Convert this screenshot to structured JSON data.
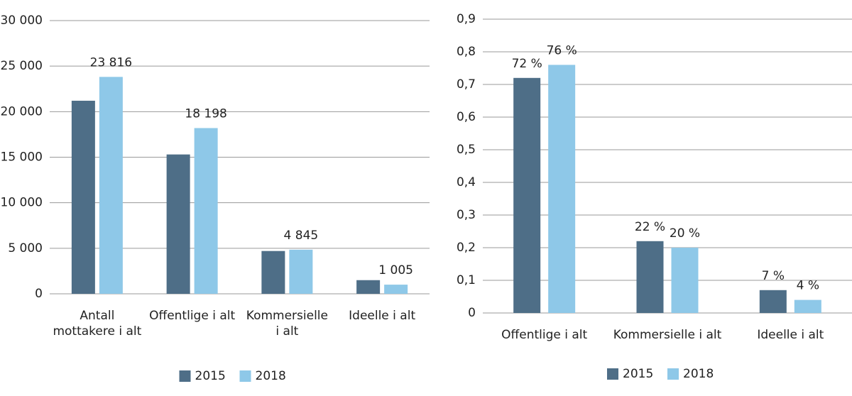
{
  "chart_data": [
    {
      "type": "bar",
      "categories": [
        "Antall mottakere i alt",
        "Offentlige i alt",
        "Kommersielle i alt",
        "Ideelle i alt"
      ],
      "series": [
        {
          "name": "2015",
          "color": "#4e6e87",
          "values": [
            21200,
            15300,
            4700,
            1500
          ]
        },
        {
          "name": "2018",
          "color": "#8ec8e8",
          "values": [
            23816,
            18198,
            4845,
            1005
          ],
          "value_labels": [
            "23 816",
            "18 198",
            "4 845",
            "1 005"
          ]
        }
      ],
      "ylim": [
        0,
        30000
      ],
      "yticks": [
        0,
        {
          "value": 5000,
          "label": "5 000"
        },
        {
          "value": 10000,
          "label": "10 000"
        },
        {
          "value": 15000,
          "label": "15 000"
        },
        {
          "value": 20000,
          "label": "20 000"
        },
        {
          "value": 25000,
          "label": "25 000"
        },
        {
          "value": 30000,
          "label": "30 000"
        }
      ],
      "grid": true,
      "legend": "bottom"
    },
    {
      "type": "bar",
      "categories": [
        "Offentlige i alt",
        "Kommersielle i alt",
        "Ideelle i alt"
      ],
      "series": [
        {
          "name": "2015",
          "color": "#4e6e87",
          "values": [
            0.72,
            0.22,
            0.07
          ],
          "value_labels": [
            "72 %",
            "22 %",
            "7 %"
          ]
        },
        {
          "name": "2018",
          "color": "#8ec8e8",
          "values": [
            0.76,
            0.2,
            0.04
          ],
          "value_labels": [
            "76 %",
            "20 %",
            "4 %"
          ]
        }
      ],
      "ylim": [
        0,
        0.9
      ],
      "yticks": [
        0,
        {
          "value": 0.1,
          "label": "0,1"
        },
        {
          "value": 0.2,
          "label": "0,2"
        },
        {
          "value": 0.3,
          "label": "0,3"
        },
        {
          "value": 0.4,
          "label": "0,4"
        },
        {
          "value": 0.5,
          "label": "0,5"
        },
        {
          "value": 0.6,
          "label": "0,6"
        },
        {
          "value": 0.7,
          "label": "0,7"
        },
        {
          "value": 0.8,
          "label": "0,8"
        },
        {
          "value": 0.9,
          "label": "0,9"
        }
      ],
      "grid": true,
      "legend": "bottom"
    }
  ]
}
